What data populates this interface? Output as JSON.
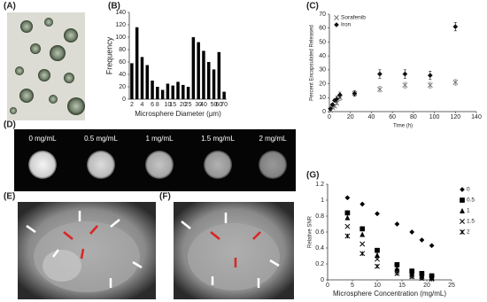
{
  "figure": {
    "panel_labels": [
      "(A)",
      "(B)",
      "(C)",
      "(D)",
      "(E)",
      "(F)",
      "(G)"
    ],
    "phantom_labels": [
      "0 mg/mL",
      "0.5 mg/mL",
      "1 mg/mL",
      "1.5 mg/mL",
      "2 mg/mL"
    ]
  },
  "chart_data": [
    {
      "type": "bar",
      "xlabel": "Microsphere Diameter (μm)",
      "ylabel": "Frequency",
      "color": "#000000",
      "categories": [
        "2",
        null,
        "4",
        null,
        "6",
        "8",
        null,
        "10",
        "15",
        null,
        "20",
        "25",
        null,
        "30",
        "40",
        null,
        "50",
        "60",
        "70"
      ],
      "values": [
        58,
        116,
        68,
        55,
        30,
        20,
        15,
        25,
        22,
        28,
        23,
        20,
        100,
        92,
        78,
        60,
        48,
        76,
        12
      ],
      "ylim": [
        0,
        140
      ],
      "yticks": [
        0,
        20,
        40,
        60,
        80,
        100,
        120,
        140
      ]
    },
    {
      "type": "scatter",
      "xlabel": "Time (h)",
      "ylabel": "Percent Encapsulated Released",
      "legend": "upper left",
      "x": [
        1,
        3,
        5,
        7,
        10,
        24,
        48,
        72,
        96,
        120
      ],
      "series": [
        {
          "name": "Sorafenib",
          "color": "#777777",
          "marker": "x",
          "values": [
            1,
            3,
            4,
            6,
            10,
            13,
            16,
            19,
            19,
            21
          ],
          "errors": [
            1,
            1,
            1,
            1,
            2,
            1,
            2,
            2,
            2,
            2
          ]
        },
        {
          "name": "Iron",
          "color": "#111111",
          "marker": "diamond",
          "values": [
            2,
            5,
            8,
            9,
            12,
            13,
            27,
            27,
            26,
            61
          ],
          "errors": [
            1,
            1,
            1,
            2,
            2,
            2,
            3,
            3,
            3,
            3
          ]
        }
      ],
      "xlim": [
        0,
        140
      ],
      "xticks": [
        0,
        20,
        40,
        60,
        80,
        100,
        120,
        140
      ],
      "ylim": [
        0,
        70
      ],
      "yticks": [
        0,
        10,
        20,
        30,
        40,
        50,
        60,
        70
      ]
    },
    {
      "type": "scatter",
      "xlabel": "Microsphere Concentration (mg/mL)",
      "ylabel": "Relative SNR",
      "legend": "right",
      "x": [
        4,
        7,
        10,
        14,
        17,
        19,
        21
      ],
      "series": [
        {
          "name": "0",
          "color": "#000000",
          "marker": "diamond",
          "values": [
            1.03,
            0.95,
            0.83,
            0.7,
            0.6,
            0.5,
            0.43
          ]
        },
        {
          "name": "0.5",
          "color": "#000000",
          "marker": "square",
          "values": [
            0.84,
            0.64,
            0.37,
            0.19,
            0.11,
            0.08,
            0.05
          ]
        },
        {
          "name": "1",
          "color": "#000000",
          "marker": "triangle",
          "values": [
            0.78,
            0.57,
            0.31,
            0.14,
            0.08,
            0.05,
            0.03
          ]
        },
        {
          "name": "1.5",
          "color": "#000000",
          "marker": "x",
          "values": [
            0.67,
            0.45,
            0.26,
            0.11,
            0.06,
            0.04,
            0.02
          ]
        },
        {
          "name": "2",
          "color": "#000000",
          "marker": "asterisk",
          "values": [
            0.55,
            0.33,
            0.17,
            0.08,
            0.04,
            0.02,
            0.01
          ]
        }
      ],
      "xlim": [
        0,
        25
      ],
      "xticks": [
        0,
        5,
        10,
        15,
        20,
        25
      ],
      "ylim": [
        0,
        1.2
      ],
      "yticks": [
        0,
        0.2,
        0.4,
        0.6,
        0.8,
        1,
        1.2
      ]
    }
  ]
}
